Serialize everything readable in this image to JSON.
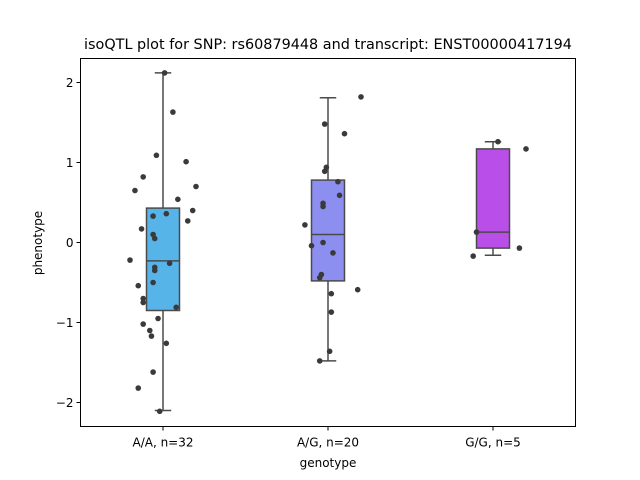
{
  "chart_data": {
    "type": "box",
    "title": "isoQTL plot for SNP: rs60879448 and transcript: ENST00000417194",
    "xlabel": "genotype",
    "ylabel": "phenotype",
    "ylim": [
      -2.3,
      2.3
    ],
    "yticks": [
      -2,
      -1,
      0,
      1,
      2
    ],
    "ytick_labels": [
      "−2",
      "−1",
      "0",
      "1",
      "2"
    ],
    "grid": false,
    "groups": [
      {
        "label": "A/A, n=32",
        "color": "#56b4e9",
        "box": {
          "whisker_low": -2.1,
          "q1": -0.85,
          "median": -0.23,
          "q3": 0.43,
          "whisker_high": 2.12
        },
        "points": [
          [
            0.01,
            2.12
          ],
          [
            0.06,
            1.63
          ],
          [
            -0.04,
            1.09
          ],
          [
            0.14,
            1.01
          ],
          [
            -0.12,
            0.82
          ],
          [
            0.2,
            0.7
          ],
          [
            -0.17,
            0.65
          ],
          [
            0.09,
            0.54
          ],
          [
            0.18,
            0.4
          ],
          [
            -0.06,
            0.33
          ],
          [
            0.02,
            0.36
          ],
          [
            0.15,
            0.27
          ],
          [
            -0.13,
            0.17
          ],
          [
            -0.06,
            0.1
          ],
          [
            -0.05,
            0.05
          ],
          [
            -0.2,
            -0.22
          ],
          [
            0.04,
            -0.26
          ],
          [
            -0.05,
            -0.31
          ],
          [
            -0.05,
            -0.35
          ],
          [
            -0.06,
            -0.5
          ],
          [
            -0.15,
            -0.54
          ],
          [
            -0.12,
            -0.7
          ],
          [
            -0.12,
            -0.75
          ],
          [
            0.08,
            -0.81
          ],
          [
            -0.03,
            -0.95
          ],
          [
            -0.12,
            -1.02
          ],
          [
            -0.08,
            -1.1
          ],
          [
            -0.07,
            -1.17
          ],
          [
            0.02,
            -1.26
          ],
          [
            -0.06,
            -1.62
          ],
          [
            -0.15,
            -1.82
          ],
          [
            -0.02,
            -2.11
          ]
        ]
      },
      {
        "label": "A/G, n=20",
        "color": "#8c8ef0",
        "box": {
          "whisker_low": -1.48,
          "q1": -0.48,
          "median": 0.1,
          "q3": 0.78,
          "whisker_high": 1.81
        },
        "points": [
          [
            0.2,
            1.82
          ],
          [
            -0.02,
            1.48
          ],
          [
            0.1,
            1.36
          ],
          [
            -0.01,
            0.94
          ],
          [
            -0.02,
            0.89
          ],
          [
            0.06,
            0.76
          ],
          [
            0.07,
            0.59
          ],
          [
            -0.03,
            0.49
          ],
          [
            -0.03,
            0.45
          ],
          [
            -0.14,
            0.22
          ],
          [
            -0.03,
            0.0
          ],
          [
            -0.1,
            -0.04
          ],
          [
            0.03,
            -0.13
          ],
          [
            -0.04,
            -0.4
          ],
          [
            -0.05,
            -0.44
          ],
          [
            0.18,
            -0.59
          ],
          [
            0.02,
            -0.64
          ],
          [
            0.02,
            -0.87
          ],
          [
            0.01,
            -1.36
          ],
          [
            -0.05,
            -1.48
          ]
        ]
      },
      {
        "label": "G/G, n=5",
        "color": "#b94fe8",
        "box": {
          "whisker_low": -0.16,
          "q1": -0.07,
          "median": 0.13,
          "q3": 1.17,
          "whisker_high": 1.26
        },
        "points": [
          [
            0.03,
            1.26
          ],
          [
            0.2,
            1.17
          ],
          [
            -0.1,
            0.13
          ],
          [
            0.16,
            -0.07
          ],
          [
            -0.12,
            -0.17
          ]
        ]
      }
    ]
  }
}
